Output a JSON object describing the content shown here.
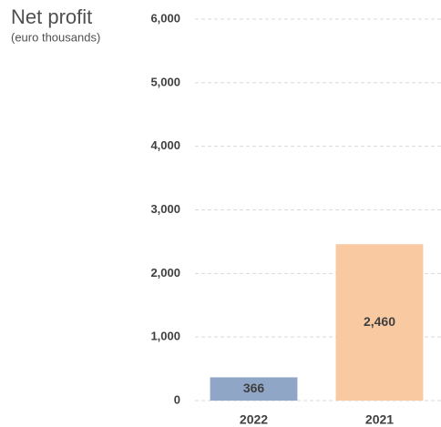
{
  "chart_data": {
    "type": "bar",
    "title": "Net profit",
    "subtitle": "(euro thousands)",
    "categories": [
      "2022",
      "2021"
    ],
    "values": [
      366,
      2460
    ],
    "value_labels": [
      "366",
      "2,460"
    ],
    "colors": [
      "#8fa6c7",
      "#f9c9a1"
    ],
    "ylim": [
      0,
      6000
    ],
    "yticks": [
      0,
      {
        "value": 1000,
        "label": "1,000"
      },
      {
        "value": 2000,
        "label": "2,000"
      },
      {
        "value": 3000,
        "label": "3,000"
      },
      {
        "value": 4000,
        "label": "4,000"
      },
      {
        "value": 5000,
        "label": "5,000"
      },
      {
        "value": 6000,
        "label": "6,000"
      }
    ],
    "grid": true
  }
}
